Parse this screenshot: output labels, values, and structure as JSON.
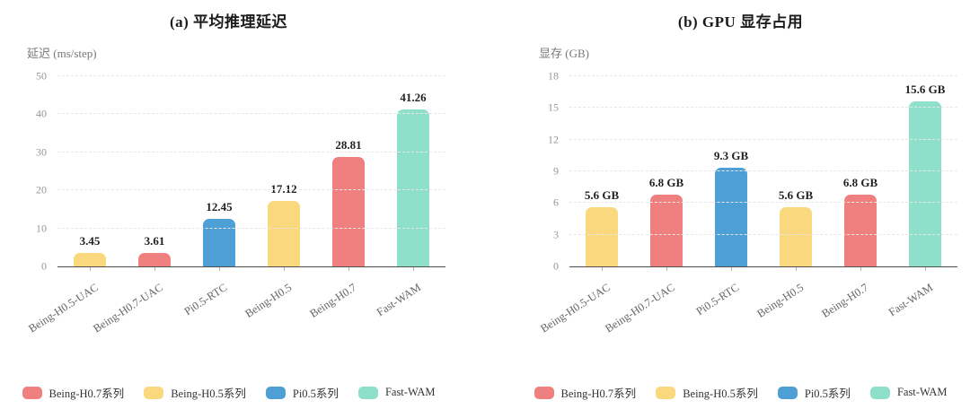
{
  "colors": {
    "series_red": "#F08080",
    "series_yellow": "#FAD87D",
    "series_blue": "#4D9FD6",
    "series_teal": "#8EE0CB",
    "axis_line": "#4f4f4f",
    "grid_line": "#e7e7e7",
    "tick_text": "#979797",
    "category_text": "#666666",
    "value_text": "#222222",
    "title_text": "#1c1c1c",
    "unit_text": "#787878"
  },
  "chart_data": [
    {
      "type": "bar",
      "title": "(a) 平均推理延迟",
      "ylabel": "延迟 (ms/step)",
      "xlabel": "",
      "ylim": [
        0,
        50
      ],
      "yticks": [
        0,
        10,
        20,
        30,
        40,
        50
      ],
      "grid": true,
      "legend_position": "bottom",
      "categories": [
        "Being-H0.5-UAC",
        "Being-H0.7-UAC",
        "Pi0.5-RTC",
        "Being-H0.5",
        "Being-H0.7",
        "Fast-WAM"
      ],
      "values": [
        3.45,
        3.61,
        12.45,
        17.12,
        28.81,
        41.26
      ],
      "value_labels": [
        "3.45",
        "3.61",
        "12.45",
        "17.12",
        "28.81",
        "41.26"
      ],
      "bar_colors": [
        "series_yellow",
        "series_red",
        "series_blue",
        "series_yellow",
        "series_red",
        "series_teal"
      ],
      "legend": [
        {
          "label": "Being-H0.7系列",
          "color": "series_red"
        },
        {
          "label": "Being-H0.5系列",
          "color": "series_yellow"
        },
        {
          "label": "Pi0.5系列",
          "color": "series_blue"
        },
        {
          "label": "Fast-WAM",
          "color": "series_teal"
        }
      ]
    },
    {
      "type": "bar",
      "title": "(b) GPU 显存占用",
      "ylabel": "显存 (GB)",
      "xlabel": "",
      "ylim": [
        0,
        18
      ],
      "yticks": [
        0,
        3,
        6,
        9,
        12,
        15,
        18
      ],
      "grid": true,
      "legend_position": "bottom",
      "categories": [
        "Being-H0.5-UAC",
        "Being-H0.7-UAC",
        "Pi0.5-RTC",
        "Being-H0.5",
        "Being-H0.7",
        "Fast-WAM"
      ],
      "values": [
        5.6,
        6.8,
        9.3,
        5.6,
        6.8,
        15.6
      ],
      "value_labels": [
        "5.6 GB",
        "6.8 GB",
        "9.3 GB",
        "5.6 GB",
        "6.8 GB",
        "15.6 GB"
      ],
      "bar_colors": [
        "series_yellow",
        "series_red",
        "series_blue",
        "series_yellow",
        "series_red",
        "series_teal"
      ],
      "legend": [
        {
          "label": "Being-H0.7系列",
          "color": "series_red"
        },
        {
          "label": "Being-H0.5系列",
          "color": "series_yellow"
        },
        {
          "label": "Pi0.5系列",
          "color": "series_blue"
        },
        {
          "label": "Fast-WAM",
          "color": "series_teal"
        }
      ]
    }
  ]
}
